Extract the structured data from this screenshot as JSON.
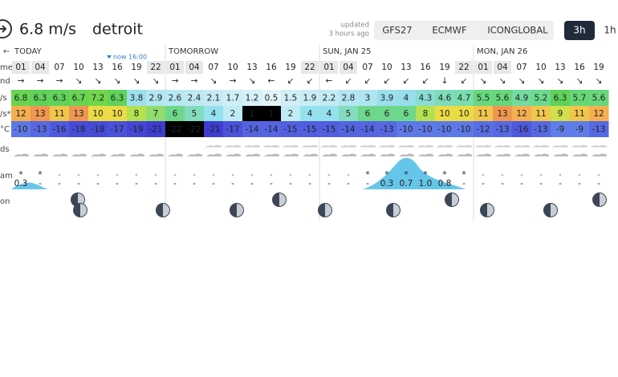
{
  "header": {
    "speed": "6.8 m/s",
    "location": "detroit",
    "updated": "updated",
    "updated_ago": "3 hours ago"
  },
  "models": [
    "GFS27",
    "ECMWF",
    "ICONGLOBAL"
  ],
  "intervals": [
    "3h",
    "1h"
  ],
  "nav_back": "←",
  "now_label": "now 16:00",
  "days": [
    "TODAY",
    "TOMORROW",
    "SUN, JAN 25",
    "MON, JAN 26"
  ],
  "row_labels": [
    "me",
    "nd",
    "/s",
    "/s*",
    "°C",
    "ds",
    "am",
    "on"
  ],
  "hours": [
    "01",
    "04",
    "07",
    "10",
    "13",
    "16",
    "19",
    "22",
    "01",
    "04",
    "07",
    "10",
    "13",
    "16",
    "19",
    "22",
    "01",
    "04",
    "07",
    "10",
    "13",
    "16",
    "19",
    "22",
    "01",
    "04",
    "07",
    "10",
    "13",
    "16",
    "19"
  ],
  "wind_dir": [
    "→",
    "→",
    "→",
    "↘",
    "↘",
    "↘",
    "↘",
    "↘",
    "→",
    "→",
    "↘",
    "→",
    "↘",
    "←",
    "↙",
    "↙",
    "←",
    "↙",
    "↙",
    "↙",
    "↙",
    "↙",
    "↓",
    "↙",
    "↘",
    "↘",
    "↘",
    "↘",
    "↘",
    "↘",
    "↘"
  ],
  "wind_speed": [
    6.8,
    6.3,
    6.3,
    6.7,
    7.2,
    6.3,
    3.8,
    2.9,
    2.6,
    2.4,
    2.1,
    1.7,
    1.2,
    0.5,
    1.5,
    1.9,
    2.2,
    2.8,
    3,
    3.9,
    4,
    4.3,
    4.6,
    4.7,
    5.5,
    5.6,
    4.9,
    5.2,
    6.3,
    5.7,
    5.6
  ],
  "gusts": [
    12,
    13,
    11,
    13,
    10,
    10,
    8,
    7,
    6,
    5,
    4,
    2,
    1,
    1,
    2,
    4,
    4,
    5,
    6,
    6,
    6,
    8,
    10,
    10,
    11,
    13,
    12,
    11,
    9,
    11,
    12
  ],
  "temperature": [
    -10,
    -13,
    -16,
    -18,
    -18,
    -17,
    -19,
    -21,
    -22,
    -22,
    -21,
    -17,
    -14,
    -14,
    -15,
    -15,
    -15,
    -14,
    -14,
    -13,
    -10,
    -10,
    -10,
    -10,
    -12,
    -13,
    -16,
    -13,
    -9,
    -9,
    -13
  ],
  "snow_symbols": {
    "0": "*",
    "1": "*",
    "18": "*",
    "19": "*",
    "20": "*",
    "21": "*",
    "22": "*",
    "23": "*"
  },
  "precip": [
    "0.3",
    "-",
    "-",
    "-",
    "-",
    "-",
    "-",
    "-",
    "-",
    "-",
    "-",
    "-",
    "-",
    "-",
    "-",
    "-",
    "-",
    "-",
    "-",
    "0.3",
    "0.7",
    "1.0",
    "0.8",
    "-",
    "-",
    "-",
    "-",
    "-",
    "-",
    "-",
    "-"
  ]
}
